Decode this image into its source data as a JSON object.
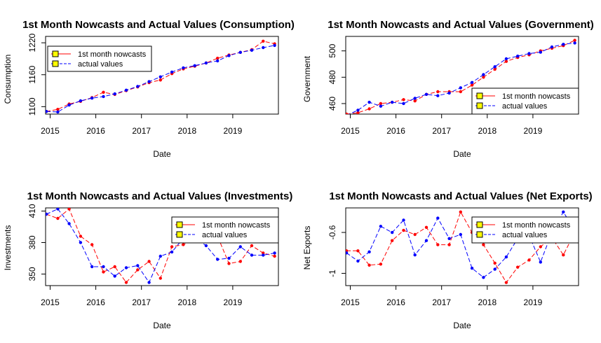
{
  "legend_labels": [
    "1st month nowcasts",
    "actual values"
  ],
  "colors": {
    "nowcast": "#ff0000",
    "actual": "#0000ff",
    "legend_box_fill": "#ffff00",
    "axis": "#000000"
  },
  "chart_data": [
    {
      "type": "line",
      "title": "1st Month Nowcasts and Actual Values (Consumption)",
      "xlabel": "Date",
      "ylabel": "Consumption",
      "x": [
        "2014-12",
        "2015-03",
        "2015-06",
        "2015-09",
        "2015-12",
        "2016-03",
        "2016-06",
        "2016-09",
        "2016-12",
        "2017-03",
        "2017-06",
        "2017-09",
        "2017-12",
        "2018-03",
        "2018-06",
        "2018-09",
        "2018-12",
        "2019-03",
        "2019-06",
        "2019-09",
        "2019-12"
      ],
      "xticks": [
        "2015",
        "2016",
        "2017",
        "2018",
        "2019"
      ],
      "yticks": [
        1100,
        1160,
        1220
      ],
      "ylim": [
        1086,
        1232
      ],
      "legend_position": "top-left",
      "series": [
        {
          "name": "1st month nowcasts",
          "values": [
            1091,
            1095,
            1105,
            1110,
            1117,
            1127,
            1123,
            1130,
            1137,
            1145,
            1150,
            1162,
            1171,
            1176,
            1182,
            1191,
            1197,
            1202,
            1207,
            1223,
            1218
          ]
        },
        {
          "name": "actual values",
          "values": [
            1091,
            1090,
            1103,
            1111,
            1116,
            1119,
            1124,
            1131,
            1138,
            1147,
            1156,
            1165,
            1173,
            1177,
            1182,
            1186,
            1196,
            1202,
            1206,
            1211,
            1215
          ]
        }
      ]
    },
    {
      "type": "line",
      "title": "1st Month Nowcasts and Actual Values (Government)",
      "xlabel": "Date",
      "ylabel": "Government",
      "x": [
        "2014-12",
        "2015-03",
        "2015-06",
        "2015-09",
        "2015-12",
        "2016-03",
        "2016-06",
        "2016-09",
        "2016-12",
        "2017-03",
        "2017-06",
        "2017-09",
        "2017-12",
        "2018-03",
        "2018-06",
        "2018-09",
        "2018-12",
        "2019-03",
        "2019-06",
        "2019-09",
        "2019-12"
      ],
      "xticks": [
        "2015",
        "2016",
        "2017",
        "2018",
        "2019"
      ],
      "yticks": [
        460,
        480,
        500
      ],
      "ylim": [
        452,
        511
      ],
      "legend_position": "bottom-right",
      "series": [
        {
          "name": "1st month nowcasts",
          "values": [
            452,
            453,
            456,
            460,
            461,
            463,
            462,
            467,
            469,
            469,
            469,
            474,
            480,
            486,
            492,
            495,
            497,
            500,
            502,
            504,
            508
          ]
        },
        {
          "name": "actual values",
          "values": [
            451,
            455,
            461,
            458,
            461,
            460,
            464,
            467,
            466,
            468,
            472,
            476,
            482,
            488,
            494,
            496,
            498,
            499,
            503,
            505,
            506
          ]
        }
      ]
    },
    {
      "type": "line",
      "title": "1st Month Nowcasts and Actual Values (Investments)",
      "xlabel": "Date",
      "ylabel": "Investments",
      "x": [
        "2014-12",
        "2015-03",
        "2015-06",
        "2015-09",
        "2015-12",
        "2016-03",
        "2016-06",
        "2016-09",
        "2016-12",
        "2017-03",
        "2017-06",
        "2017-09",
        "2017-12",
        "2018-03",
        "2018-06",
        "2018-09",
        "2018-12",
        "2019-03",
        "2019-06",
        "2019-09",
        "2019-12"
      ],
      "xticks": [
        "2015",
        "2016",
        "2017",
        "2018",
        "2019"
      ],
      "yticks": [
        350,
        380,
        410
      ],
      "ylim": [
        339,
        413
      ],
      "legend_position": "top-right",
      "series": [
        {
          "name": "1st month nowcasts",
          "values": [
            407,
            403,
            412,
            386,
            378,
            352,
            357,
            342,
            354,
            362,
            346,
            376,
            378,
            383,
            397,
            386,
            360,
            362,
            377,
            370,
            367
          ]
        },
        {
          "name": "actual values",
          "values": [
            407,
            412,
            398,
            380,
            357,
            357,
            348,
            356,
            358,
            342,
            367,
            371,
            384,
            385,
            377,
            364,
            365,
            376,
            368,
            368,
            370
          ]
        }
      ]
    },
    {
      "type": "line",
      "title": "1st Month Nowcasts and Actual Values (Net Exports)",
      "xlabel": "Date",
      "ylabel": "Net Exports",
      "x": [
        "2014-12",
        "2015-03",
        "2015-06",
        "2015-09",
        "2015-12",
        "2016-03",
        "2016-06",
        "2016-09",
        "2016-12",
        "2017-03",
        "2017-06",
        "2017-09",
        "2017-12",
        "2018-03",
        "2018-06",
        "2018-09",
        "2018-12",
        "2019-03",
        "2019-06",
        "2019-09",
        "2019-12"
      ],
      "xticks": [
        "2015",
        "2016",
        "2017",
        "2018",
        "2019"
      ],
      "yticks": [
        -1.0,
        -0.6
      ],
      "ylim": [
        -1.12,
        -0.36
      ],
      "legend_position": "top-right",
      "series": [
        {
          "name": "1st month nowcasts",
          "values": [
            -0.78,
            -0.78,
            -0.92,
            -0.91,
            -0.68,
            -0.58,
            -0.62,
            -0.55,
            -0.72,
            -0.72,
            -0.4,
            -0.6,
            -0.72,
            -0.9,
            -1.09,
            -0.94,
            -0.87,
            -0.74,
            -0.65,
            -0.82,
            -0.6
          ]
        },
        {
          "name": "actual values",
          "values": [
            -0.8,
            -0.88,
            -0.79,
            -0.54,
            -0.6,
            -0.48,
            -0.82,
            -0.68,
            -0.46,
            -0.66,
            -0.62,
            -0.95,
            -1.04,
            -0.96,
            -0.84,
            -0.66,
            -0.63,
            -0.89,
            -0.6,
            -0.4,
            -0.58
          ]
        }
      ]
    }
  ]
}
